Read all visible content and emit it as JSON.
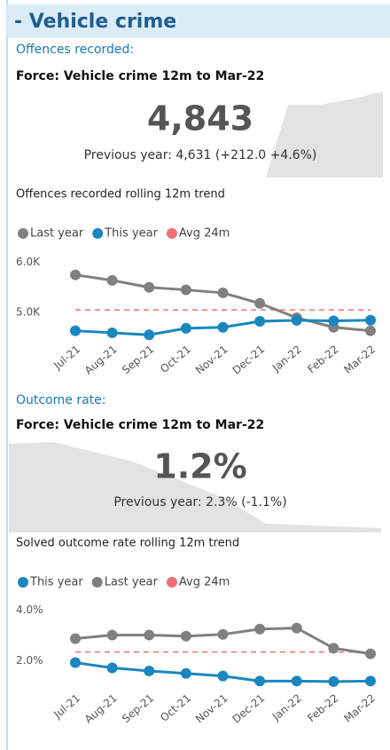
{
  "header": {
    "title": "- Vehicle crime"
  },
  "sections": [
    {
      "heading": "Offences recorded:",
      "subtitle": "Force: Vehicle crime 12m to Mar-22",
      "kpi": "4,843",
      "previous": "Previous year: 4,631 (+212.0 +4.6%)"
    },
    {
      "heading": "Outcome rate:",
      "subtitle": "Force: Vehicle crime 12m to Mar-22",
      "kpi": "1.2%",
      "previous": "Previous year: 2.3% (-1.1%)"
    }
  ],
  "chart_data": [
    {
      "type": "line",
      "title": "Offences recorded rolling 12m trend",
      "categories": [
        "Jul-21",
        "Aug-21",
        "Sep-21",
        "Oct-21",
        "Nov-21",
        "Dec-21",
        "Jan-22",
        "Feb-22",
        "Mar-22"
      ],
      "series": [
        {
          "name": "Last year",
          "color": "#808080",
          "values": [
            5750,
            5640,
            5500,
            5450,
            5390,
            5180,
            4890,
            4700,
            4630
          ]
        },
        {
          "name": "This year",
          "color": "#1a86c0",
          "values": [
            4630,
            4590,
            4550,
            4680,
            4700,
            4820,
            4840,
            4830,
            4843
          ]
        },
        {
          "name": "Avg 24m",
          "color": "#f07070",
          "dashed": true,
          "values": [
            5050,
            5050,
            5050,
            5050,
            5050,
            5050,
            5050,
            5050,
            5050
          ]
        }
      ],
      "ylim": [
        4500,
        6100
      ],
      "yticks": [
        {
          "value": 5000,
          "label": "5.0K"
        },
        {
          "value": 6000,
          "label": "6.0K"
        }
      ],
      "grid": false,
      "legend": "top"
    },
    {
      "type": "line",
      "title": "Solved outcome rate rolling 12m trend",
      "categories": [
        "Jul-21",
        "Aug-21",
        "Sep-21",
        "Oct-21",
        "Nov-21",
        "Dec-21",
        "Jan-22",
        "Feb-22",
        "Mar-22"
      ],
      "series": [
        {
          "name": "This year",
          "color": "#1a86c0",
          "values": [
            1.93,
            1.72,
            1.6,
            1.5,
            1.4,
            1.2,
            1.2,
            1.18,
            1.2
          ]
        },
        {
          "name": "Last year",
          "color": "#808080",
          "values": [
            2.88,
            3.02,
            3.02,
            2.98,
            3.05,
            3.26,
            3.3,
            2.5,
            2.28
          ]
        },
        {
          "name": "Avg 24m",
          "color": "#f07070",
          "dashed": true,
          "values": [
            2.35,
            2.35,
            2.35,
            2.35,
            2.35,
            2.35,
            2.35,
            2.35,
            2.35
          ]
        }
      ],
      "ylim": [
        1,
        4.2
      ],
      "yticks": [
        {
          "value": 2,
          "label": "2.0%"
        },
        {
          "value": 4,
          "label": "4.0%"
        }
      ],
      "grid": false,
      "legend": "top"
    }
  ]
}
